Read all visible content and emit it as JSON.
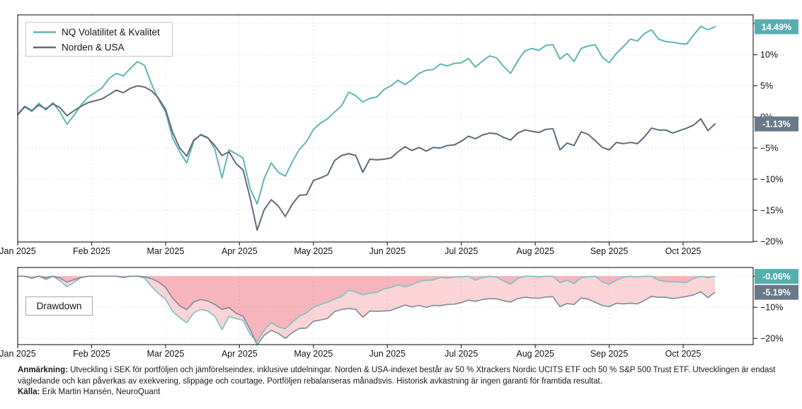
{
  "page": {
    "background": "#ffffff"
  },
  "drawdown_box_label": "Drawdown",
  "chart_data": [
    {
      "type": "line",
      "name": "performance",
      "title": "",
      "xlabel": "",
      "ylabel": "",
      "unit": "%",
      "grid": true,
      "legend_position": "top-left",
      "x_ticks": [
        "Jan 2025",
        "Feb 2025",
        "Mar 2025",
        "Apr 2025",
        "May 2025",
        "Jun 2025",
        "Jul 2025",
        "Aug 2025",
        "Sep 2025",
        "Oct 2025"
      ],
      "y_ticks": [
        15,
        10,
        5,
        0,
        -5,
        -10,
        -15,
        -20
      ],
      "ylim": [
        -20.1,
        16.4
      ],
      "series": [
        {
          "name": "NQ Volatilitet & Kvalitet",
          "color": "#63b4b6",
          "badge_color": "#57aeb1",
          "end_label": "14.49%",
          "values": [
            0.3,
            1.6,
            0.9,
            2.2,
            1.1,
            2.3,
            0.8,
            -1.2,
            0.3,
            1.9,
            3.2,
            3.9,
            4.7,
            6.2,
            7.0,
            6.6,
            7.8,
            8.9,
            8.3,
            5.3,
            2.8,
            0.8,
            -3.4,
            -5.6,
            -7.4,
            -3.9,
            -2.8,
            -3.3,
            -5.2,
            -9.8,
            -5.3,
            -5.9,
            -6.6,
            -11.5,
            -14.0,
            -9.9,
            -7.4,
            -8.9,
            -9.5,
            -7.2,
            -5.2,
            -4.0,
            -2.0,
            -1.0,
            -0.3,
            0.8,
            1.8,
            4.0,
            3.4,
            2.4,
            3.0,
            3.2,
            4.4,
            5.0,
            5.9,
            5.2,
            6.0,
            7.0,
            7.5,
            7.6,
            8.5,
            8.2,
            8.6,
            8.7,
            9.4,
            8.0,
            9.0,
            9.8,
            9.5,
            8.1,
            7.0,
            9.0,
            10.6,
            11.0,
            10.7,
            11.5,
            11.6,
            9.3,
            10.2,
            8.9,
            11.0,
            11.4,
            11.6,
            9.6,
            8.7,
            10.2,
            11.3,
            12.5,
            12.2,
            13.4,
            14.0,
            12.5,
            12.1,
            12.0,
            11.8,
            11.7,
            13.2,
            14.55,
            14.0,
            14.49
          ]
        },
        {
          "name": "Norden & USA",
          "color": "#5e6c7c",
          "badge_color": "#69798a",
          "end_label": "-1.13%",
          "values": [
            0.4,
            1.7,
            1.0,
            1.9,
            1.3,
            2.1,
            1.5,
            0.2,
            1.0,
            1.7,
            2.3,
            2.6,
            2.9,
            3.6,
            4.3,
            3.9,
            4.6,
            5.0,
            4.8,
            4.2,
            3.0,
            1.2,
            -2.5,
            -5.0,
            -6.3,
            -3.7,
            -2.9,
            -3.4,
            -4.6,
            -6.2,
            -5.6,
            -7.5,
            -8.5,
            -13.0,
            -18.2,
            -14.9,
            -13.3,
            -14.3,
            -16.0,
            -14.0,
            -12.6,
            -12.5,
            -10.2,
            -9.8,
            -9.3,
            -7.0,
            -6.2,
            -5.9,
            -6.2,
            -8.9,
            -6.8,
            -6.9,
            -6.8,
            -6.6,
            -5.6,
            -4.8,
            -5.4,
            -4.9,
            -5.5,
            -4.9,
            -5.0,
            -4.6,
            -4.5,
            -3.9,
            -3.1,
            -3.5,
            -2.9,
            -2.6,
            -2.7,
            -3.3,
            -3.7,
            -2.6,
            -2.1,
            -2.3,
            -2.5,
            -2.0,
            -1.9,
            -5.3,
            -4.2,
            -4.6,
            -2.4,
            -2.8,
            -3.8,
            -4.9,
            -5.3,
            -4.1,
            -4.3,
            -4.1,
            -4.3,
            -3.2,
            -1.8,
            -2.1,
            -2.1,
            -2.6,
            -2.2,
            -1.8,
            -1.3,
            -0.3,
            -2.2,
            -1.13
          ]
        }
      ]
    },
    {
      "type": "area",
      "name": "drawdown",
      "label": "Drawdown",
      "unit": "%",
      "grid": true,
      "x_ticks": [
        "Jan 2025",
        "Feb 2025",
        "Mar 2025",
        "Apr 2025",
        "May 2025",
        "Jun 2025",
        "Jul 2025",
        "Aug 2025",
        "Sep 2025",
        "Oct 2025"
      ],
      "y_ticks": [
        0,
        -10,
        -20
      ],
      "ylim": [
        -22,
        2.8
      ],
      "series": [
        {
          "name": "NQ Volatilitet & Kvalitet",
          "color": "#79c2c4",
          "fill": "rgba(236,102,112,0.28)",
          "badge_color": "#57aeb1",
          "end_label": "-0.06%",
          "values": [
            0,
            0,
            -0.7,
            0,
            -1.1,
            0,
            -1.5,
            -3.4,
            -2.0,
            -0.4,
            0,
            0,
            0,
            0,
            0,
            -0.4,
            0,
            0,
            -0.6,
            -3.3,
            -5.6,
            -7.4,
            -11.3,
            -13.3,
            -15.0,
            -11.8,
            -10.7,
            -11.2,
            -12.9,
            -17.2,
            -13.0,
            -13.6,
            -14.2,
            -18.7,
            -21.0,
            -17.3,
            -15.0,
            -16.3,
            -16.9,
            -14.8,
            -12.9,
            -11.8,
            -10.0,
            -9.1,
            -8.4,
            -7.4,
            -6.5,
            -4.5,
            -5.1,
            -6.0,
            -5.4,
            -5.2,
            -4.1,
            -3.6,
            -2.8,
            -3.4,
            -2.7,
            -1.7,
            -1.3,
            -1.2,
            -0.4,
            -0.6,
            -0.3,
            -0.2,
            0,
            -1.3,
            -0.4,
            0,
            -0.3,
            -1.5,
            -2.6,
            -0.7,
            0,
            0,
            -0.3,
            0,
            0,
            -2.1,
            -1.3,
            -2.4,
            -0.5,
            -0.2,
            0,
            -1.8,
            -2.6,
            -1.3,
            -0.3,
            0,
            -0.3,
            0,
            0,
            -1.3,
            -1.7,
            -1.8,
            -1.9,
            -2.0,
            -0.7,
            0,
            -0.5,
            -0.06
          ]
        },
        {
          "name": "Norden & USA",
          "color": "#7e8aa0",
          "fill": "rgba(236,102,112,0.28)",
          "badge_color": "#69798a",
          "end_label": "-5.19%",
          "values": [
            0,
            0,
            -0.7,
            0,
            -0.6,
            0,
            -0.6,
            -1.9,
            -1.1,
            -0.4,
            0,
            0,
            0,
            0,
            0,
            -0.4,
            0,
            0,
            -0.2,
            -0.8,
            -1.9,
            -3.6,
            -7.1,
            -9.5,
            -10.8,
            -8.3,
            -7.5,
            -8.0,
            -9.1,
            -10.7,
            -10.1,
            -11.9,
            -12.9,
            -17.1,
            -22.1,
            -19.0,
            -17.4,
            -18.4,
            -20.0,
            -18.1,
            -16.8,
            -16.7,
            -14.5,
            -14.1,
            -13.6,
            -11.4,
            -10.7,
            -10.4,
            -10.7,
            -13.2,
            -11.2,
            -11.3,
            -11.2,
            -11.0,
            -10.1,
            -9.3,
            -9.9,
            -9.4,
            -10.0,
            -9.4,
            -9.5,
            -9.1,
            -9.0,
            -8.5,
            -7.7,
            -8.1,
            -7.5,
            -7.2,
            -7.3,
            -7.9,
            -8.3,
            -7.2,
            -6.8,
            -7.0,
            -7.1,
            -6.7,
            -6.6,
            -9.8,
            -8.8,
            -9.1,
            -7.0,
            -7.4,
            -8.4,
            -9.4,
            -9.8,
            -8.7,
            -8.9,
            -8.7,
            -8.9,
            -7.8,
            -6.5,
            -6.8,
            -6.8,
            -7.2,
            -6.9,
            -6.5,
            -6.0,
            -5.0,
            -6.9,
            -5.19
          ]
        }
      ]
    }
  ],
  "footnote": {
    "note_label": "Anmärkning:",
    "note_text": "Utveckling i SEK för portföljen och jämförelseindex, inklusive utdelningar. Norden & USA-indexet består av 50 % Xtrackers Nordic UCITS ETF och 50 % S&P 500 Trust ETF. Utvecklingen är endast vägledande och kan påverkas av exekvering, slippage och courtage. Portföljen rebalanseras månadsvis. Historisk avkastning är ingen garanti för framtida resultat.",
    "source_label": "Källa:",
    "source_text": "Erik Martin Hansén, NeuroQuant"
  }
}
